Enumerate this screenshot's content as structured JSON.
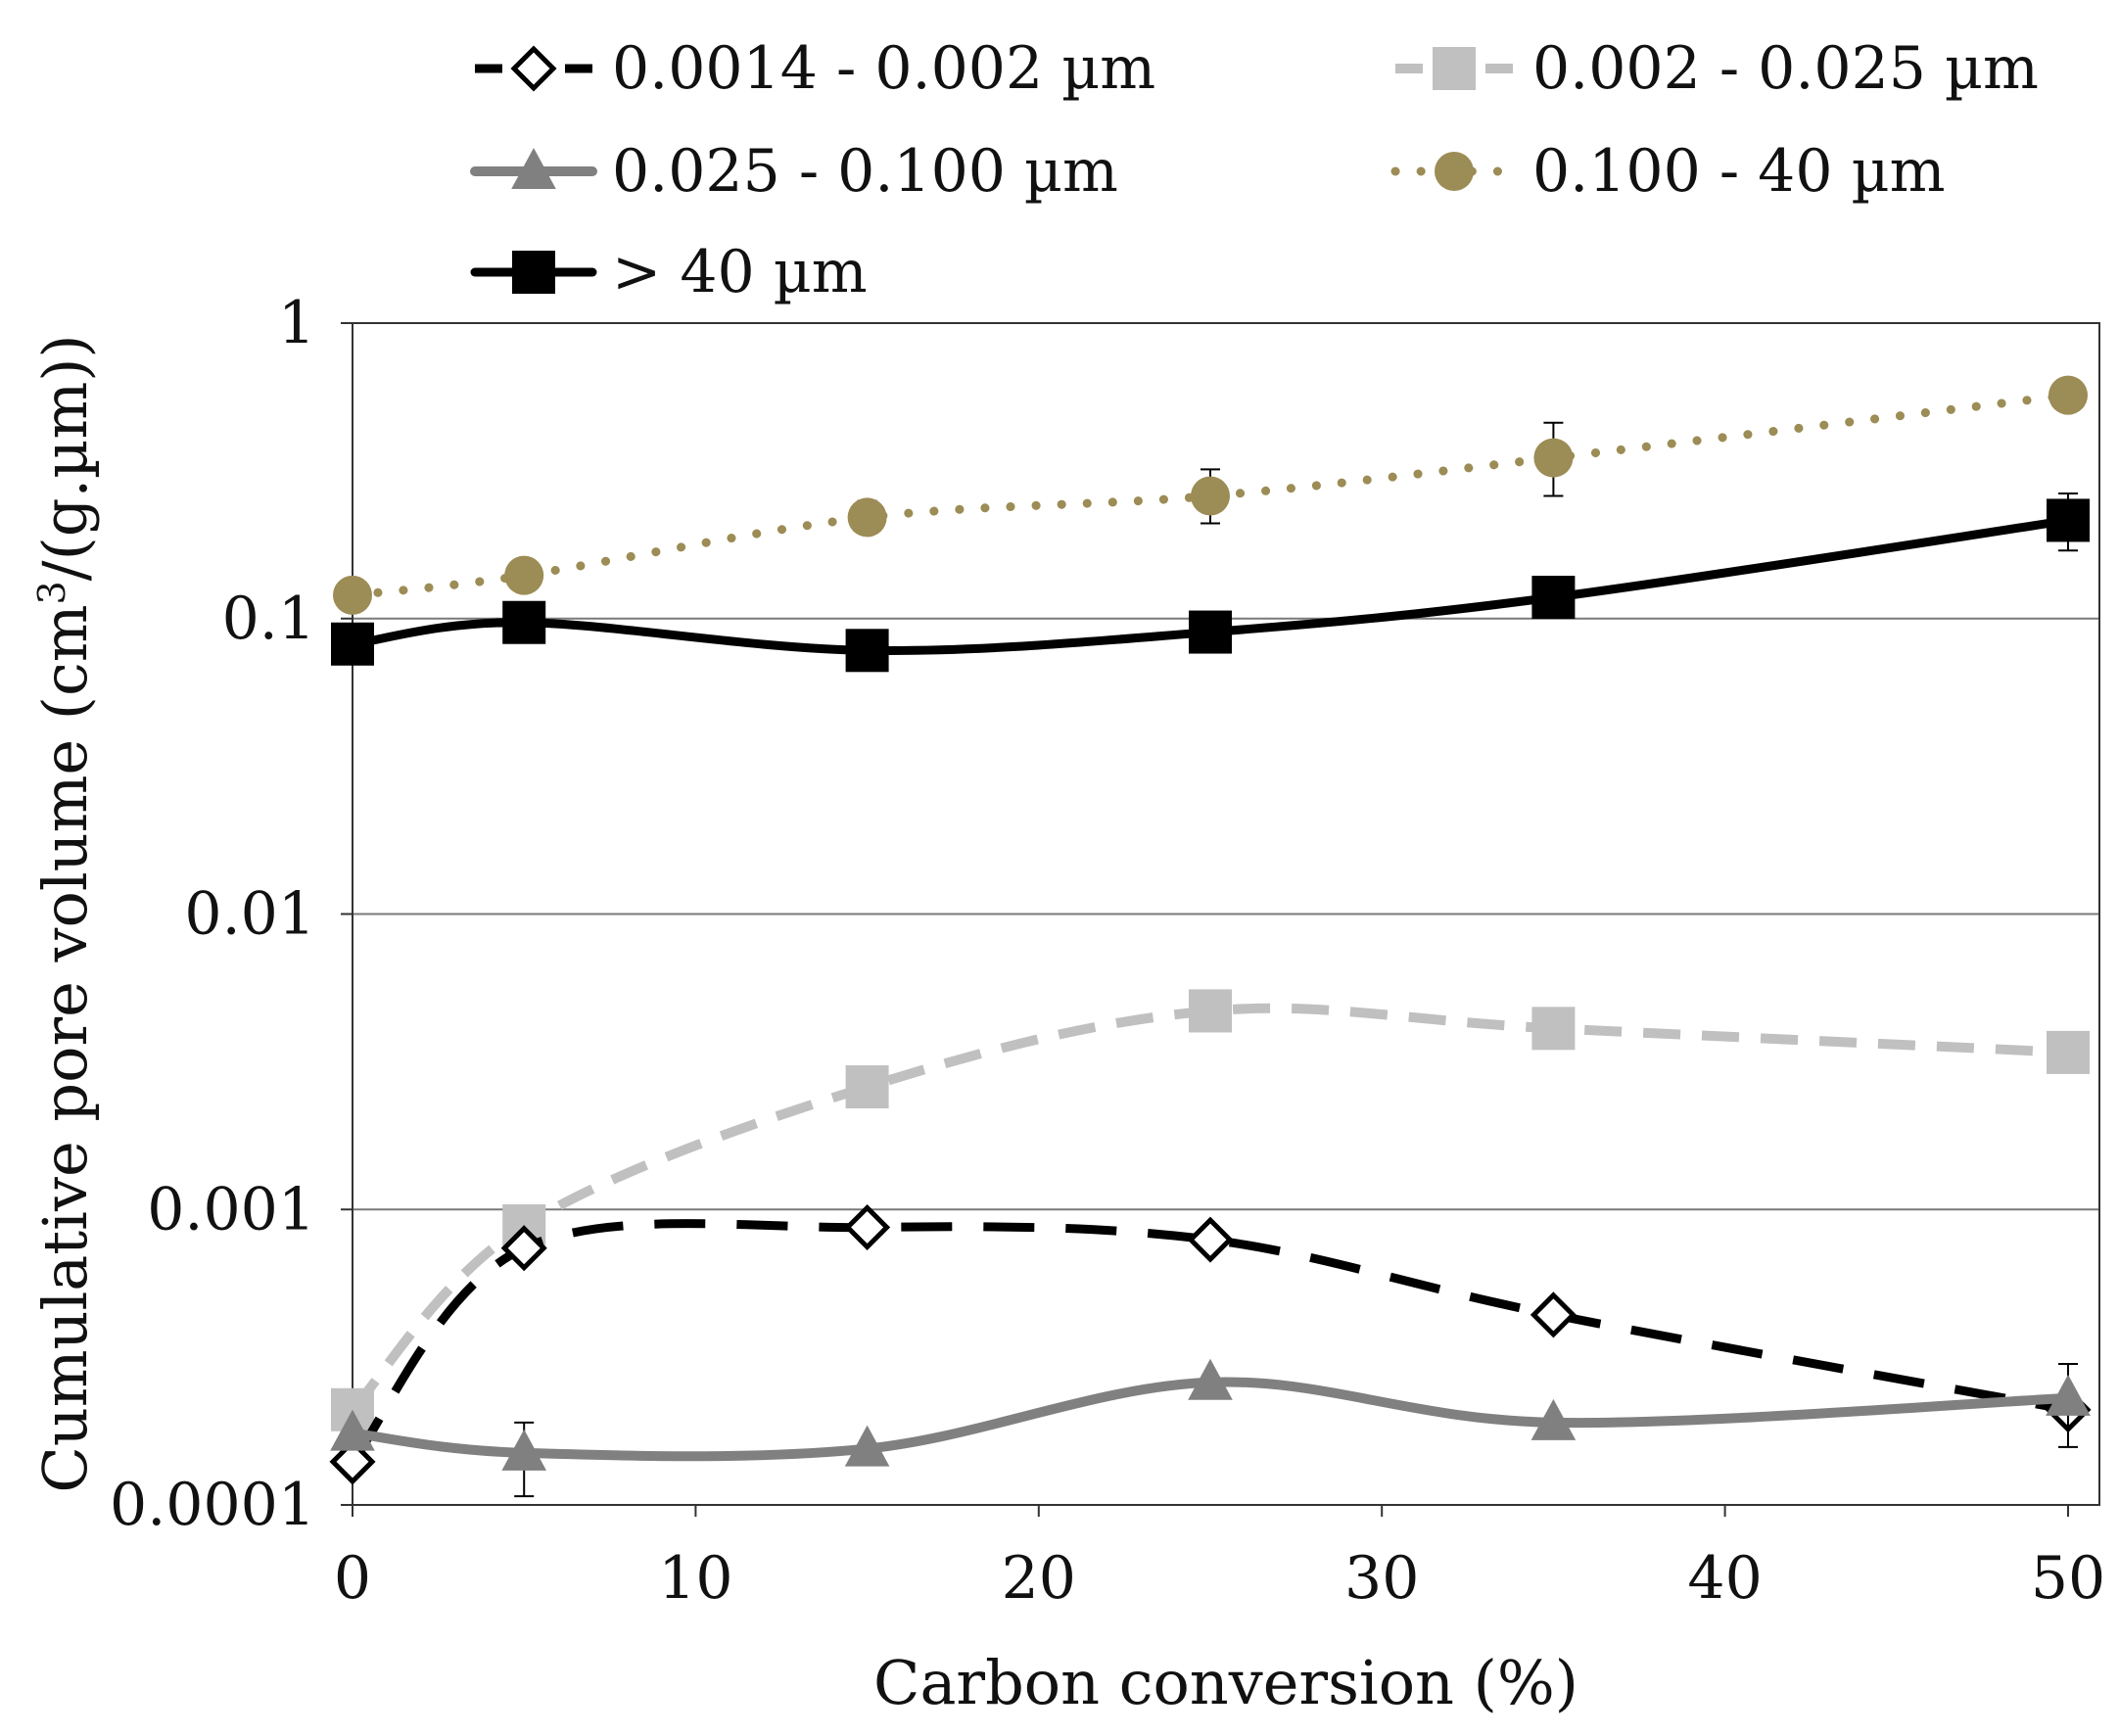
{
  "chart_data": {
    "type": "line",
    "title": "",
    "xlabel": "Carbon conversion (%)",
    "ylabel_main": "Cumulative pore volume (cm",
    "ylabel_sup": "3",
    "ylabel_tail": "/(g.µm))",
    "yscale": "log",
    "xlim": [
      0,
      51
    ],
    "ylim": [
      0.0001,
      1
    ],
    "x_ticks": [
      0,
      10,
      20,
      30,
      40,
      50
    ],
    "x_tick_labels": [
      "0",
      "10",
      "20",
      "30",
      "40",
      "50"
    ],
    "y_ticks": [
      0.0001,
      0.001,
      0.01,
      0.1,
      1
    ],
    "y_tick_labels": [
      "0.0001",
      "0.001",
      "0.01",
      "0.1",
      "1"
    ],
    "grid": "horizontal",
    "legend_placement": "top",
    "x": [
      0,
      5,
      15,
      25,
      35,
      50
    ],
    "series": [
      {
        "name": "0.0014 - 0.002 µm",
        "values": [
          0.00014,
          0.00074,
          0.00087,
          0.00079,
          0.00044,
          0.00021
        ],
        "color": "#000000",
        "marker": "diamond-open",
        "dash": "dashed"
      },
      {
        "name": "0.002 - 0.025 µm",
        "values": [
          0.00021,
          0.00088,
          0.0026,
          0.0047,
          0.0041,
          0.0034
        ],
        "color": "#c0c0c0",
        "marker": "square",
        "dash": "dashed"
      },
      {
        "name": "0.025 - 0.100 µm",
        "values": [
          0.000175,
          0.00015,
          0.000155,
          0.00026,
          0.00019,
          0.00023
        ],
        "color": "#808080",
        "marker": "triangle",
        "dash": "solid",
        "error_bars": [
          null,
          [
            0.000107,
            0.00019
          ],
          null,
          null,
          null,
          [
            0.000157,
            0.0003
          ]
        ]
      },
      {
        "name": "0.100 - 40 µm",
        "values": [
          0.12,
          0.14,
          0.22,
          0.26,
          0.35,
          0.57
        ],
        "color": "#9c8c55",
        "marker": "circle",
        "dash": "dotted",
        "error_bars": [
          null,
          null,
          [
            0.2,
            0.25
          ],
          [
            0.21,
            0.32
          ],
          [
            0.26,
            0.46
          ],
          null
        ]
      },
      {
        "name": "> 40 µm",
        "values": [
          0.082,
          0.097,
          0.078,
          0.09,
          0.118,
          0.215
        ],
        "color": "#000000",
        "marker": "square",
        "dash": "solid",
        "error_bars": [
          null,
          null,
          null,
          null,
          null,
          [
            0.17,
            0.265
          ]
        ]
      }
    ]
  }
}
